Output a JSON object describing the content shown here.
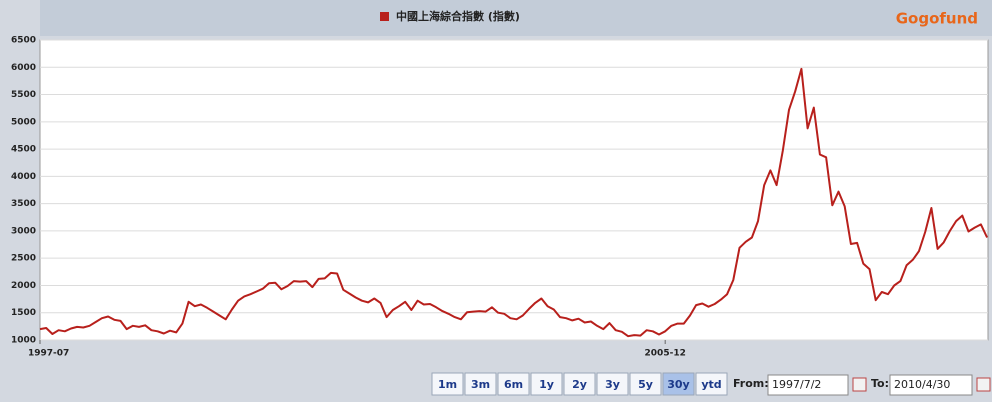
{
  "chart_data": {
    "type": "line",
    "brand": "Gogofund",
    "categories": [
      "1997-07",
      null,
      null,
      null,
      null,
      null,
      null,
      null,
      null,
      null,
      null,
      null,
      null,
      null,
      null,
      null,
      null,
      null,
      null,
      null,
      null,
      null,
      null,
      null,
      null,
      null,
      null,
      null,
      null,
      null,
      null,
      null,
      null,
      null,
      null,
      null,
      null,
      null,
      null,
      null,
      null,
      null,
      null,
      null,
      null,
      null,
      null,
      null,
      null,
      null,
      null,
      null,
      null,
      null,
      null,
      null,
      null,
      null,
      null,
      null,
      null,
      null,
      null,
      null,
      null,
      null,
      null,
      null,
      null,
      null,
      null,
      null,
      null,
      null,
      null,
      null,
      null,
      null,
      null,
      null,
      null,
      null,
      null,
      null,
      null,
      null,
      null,
      null,
      null,
      null,
      null,
      null,
      null,
      null,
      null,
      null,
      null,
      null,
      null,
      null,
      null,
      "2005-12",
      null,
      null,
      null,
      null,
      null,
      null,
      null,
      null,
      null,
      null,
      null,
      null,
      null,
      null,
      null,
      null,
      null,
      null,
      null,
      null,
      null,
      null,
      null,
      null,
      null,
      null,
      null,
      null,
      null,
      null,
      null,
      null,
      null,
      null,
      null,
      null,
      null,
      null,
      null,
      null,
      null,
      null,
      null,
      null,
      null,
      null,
      null,
      null,
      null,
      null,
      null,
      null
    ],
    "series": [
      {
        "name": "中國上海綜合指數 (指數)",
        "color": "#b8201c",
        "values": [
          1200,
          1220,
          1110,
          1180,
          1160,
          1210,
          1240,
          1230,
          1260,
          1330,
          1400,
          1430,
          1370,
          1350,
          1200,
          1260,
          1240,
          1270,
          1180,
          1160,
          1120,
          1170,
          1140,
          1300,
          1700,
          1620,
          1650,
          1590,
          1520,
          1450,
          1380,
          1560,
          1720,
          1800,
          1840,
          1890,
          1940,
          2040,
          2050,
          1930,
          1990,
          2080,
          2070,
          2080,
          1970,
          2120,
          2130,
          2230,
          2220,
          1920,
          1850,
          1780,
          1720,
          1690,
          1760,
          1680,
          1420,
          1550,
          1620,
          1700,
          1550,
          1720,
          1650,
          1660,
          1600,
          1530,
          1480,
          1420,
          1380,
          1510,
          1520,
          1530,
          1520,
          1600,
          1500,
          1480,
          1400,
          1380,
          1450,
          1570,
          1680,
          1760,
          1620,
          1560,
          1420,
          1400,
          1360,
          1390,
          1320,
          1340,
          1260,
          1200,
          1310,
          1180,
          1150,
          1070,
          1090,
          1080,
          1180,
          1160,
          1100,
          1160,
          1260,
          1300,
          1300,
          1450,
          1640,
          1670,
          1610,
          1660,
          1740,
          1840,
          2100,
          2690,
          2800,
          2880,
          3180,
          3840,
          4110,
          3840,
          4470,
          5220,
          5560,
          5970,
          4880,
          5260,
          4400,
          4350,
          3470,
          3720,
          3450,
          2760,
          2780,
          2400,
          2300,
          1730,
          1880,
          1840,
          2000,
          2080,
          2370,
          2470,
          2630,
          2980,
          3420,
          2670,
          2790,
          3000,
          3180,
          3280,
          2990,
          3060,
          3120,
          2880
        ]
      }
    ],
    "ylim": [
      1000,
      6500
    ],
    "yticks": [
      1000,
      1500,
      2000,
      2500,
      3000,
      3500,
      4000,
      4500,
      5000,
      5500,
      6000,
      6500
    ],
    "grid": true,
    "ranges": [
      "1m",
      "3m",
      "6m",
      "1y",
      "2y",
      "3y",
      "5y",
      "30y",
      "ytd"
    ],
    "selected_range": "30y",
    "from_label": "From:",
    "from_value": "1997/7/2",
    "to_label": "To:",
    "to_value": "2010/4/30"
  }
}
